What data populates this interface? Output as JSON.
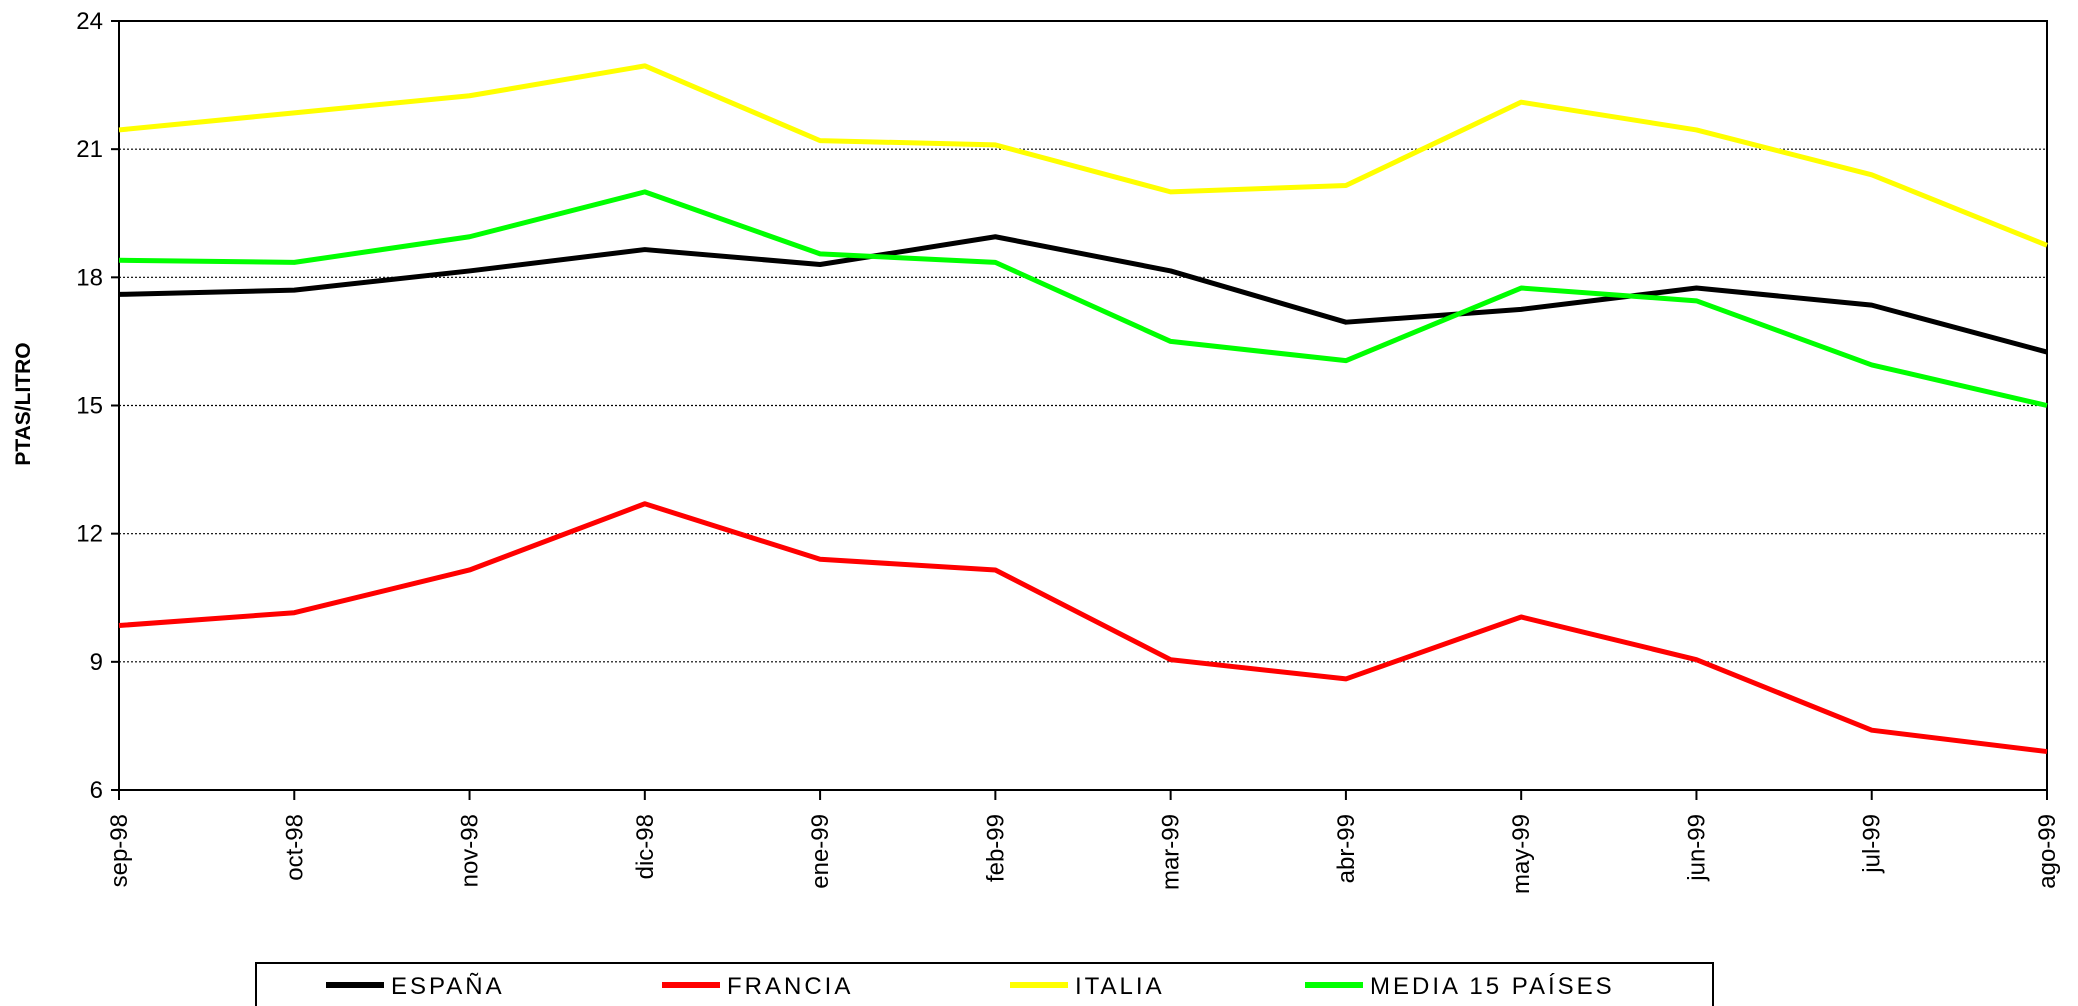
{
  "chart_data": {
    "type": "line",
    "y_label": "PTAS/LITRO",
    "categories": [
      "sep-98",
      "oct-98",
      "nov-98",
      "dic-98",
      "ene-99",
      "feb-99",
      "mar-99",
      "abr-99",
      "may-99",
      "jun-99",
      "jul-99",
      "ago-99"
    ],
    "series": [
      {
        "name": "ESPAÑA",
        "color": "#000000",
        "values": [
          17.6,
          17.7,
          18.15,
          18.65,
          18.3,
          18.95,
          18.15,
          16.95,
          17.25,
          17.75,
          17.35,
          16.25
        ]
      },
      {
        "name": "FRANCIA",
        "color": "#ff0000",
        "values": [
          9.85,
          10.15,
          11.15,
          12.7,
          11.4,
          11.15,
          9.05,
          8.6,
          10.05,
          9.05,
          7.4,
          6.9
        ]
      },
      {
        "name": "ITALIA",
        "color": "#ffff00",
        "values": [
          21.45,
          21.85,
          22.25,
          22.95,
          21.2,
          21.1,
          20.0,
          20.15,
          22.1,
          21.45,
          20.4,
          18.75
        ]
      },
      {
        "name": "MEDIA 15 PAÍSES",
        "color": "#00ff00",
        "values": [
          18.4,
          18.35,
          18.95,
          20.0,
          18.55,
          18.35,
          16.5,
          16.05,
          17.75,
          17.45,
          15.95,
          15.0
        ]
      }
    ],
    "ylim": [
      6,
      24
    ],
    "yticks": [
      6,
      9,
      12,
      15,
      18,
      21,
      24
    ],
    "grid": true,
    "legend": "bottom"
  }
}
